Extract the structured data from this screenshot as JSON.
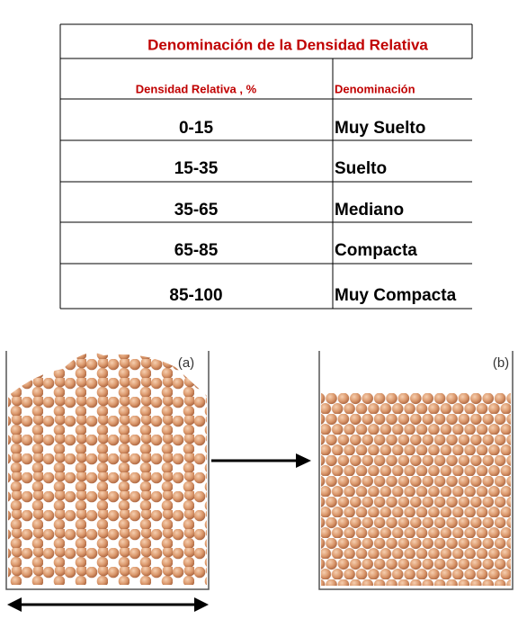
{
  "table": {
    "title": "Denominación  de  la Densidad Relativa",
    "header": [
      "Densidad Relativa , %",
      "Denominación"
    ],
    "rows": [
      [
        "0-15",
        "Muy Suelto"
      ],
      [
        "15-35",
        "Suelto"
      ],
      [
        "35-65",
        "Mediano"
      ],
      [
        "65-85",
        "Compacta"
      ],
      [
        "85-100",
        "Muy Compacta"
      ]
    ]
  },
  "figure": {
    "labels": [
      "(a)",
      "(b)"
    ]
  }
}
